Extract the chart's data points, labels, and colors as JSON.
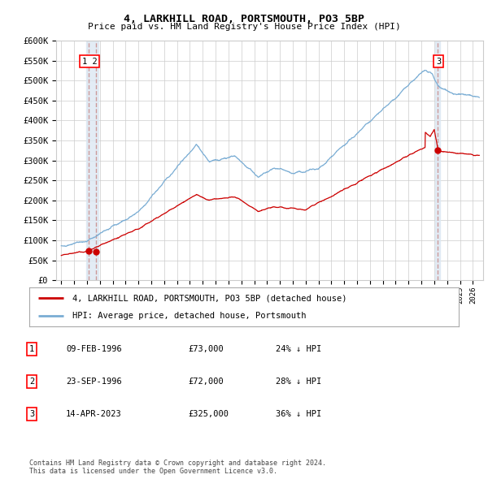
{
  "title": "4, LARKHILL ROAD, PORTSMOUTH, PO3 5BP",
  "subtitle": "Price paid vs. HM Land Registry's House Price Index (HPI)",
  "ylim": [
    0,
    600000
  ],
  "yticks": [
    0,
    50000,
    100000,
    150000,
    200000,
    250000,
    300000,
    350000,
    400000,
    450000,
    500000,
    550000,
    600000
  ],
  "xlim_start": 1993.6,
  "xlim_end": 2026.8,
  "transaction1_date": 1996.11,
  "transaction1_price": 73000,
  "transaction2_date": 1996.73,
  "transaction2_price": 72000,
  "transaction3_date": 2023.28,
  "transaction3_price": 325000,
  "red_line_color": "#cc0000",
  "blue_line_color": "#7aadd4",
  "marker_color": "#cc0000",
  "vline_color": "#cc9999",
  "vspan_color": "#dce8f3",
  "grid_color": "#cccccc",
  "background_color": "#ffffff",
  "legend_label_red": "4, LARKHILL ROAD, PORTSMOUTH, PO3 5BP (detached house)",
  "legend_label_blue": "HPI: Average price, detached house, Portsmouth",
  "table_entries": [
    {
      "num": "1",
      "date": "09-FEB-1996",
      "price": "£73,000",
      "hpi": "24% ↓ HPI"
    },
    {
      "num": "2",
      "date": "23-SEP-1996",
      "price": "£72,000",
      "hpi": "28% ↓ HPI"
    },
    {
      "num": "3",
      "date": "14-APR-2023",
      "price": "£325,000",
      "hpi": "36% ↓ HPI"
    }
  ],
  "footer": "Contains HM Land Registry data © Crown copyright and database right 2024.\nThis data is licensed under the Open Government Licence v3.0."
}
